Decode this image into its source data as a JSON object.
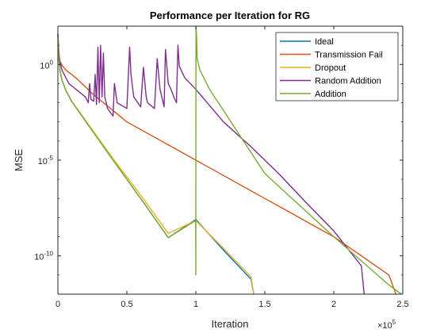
{
  "chart_data": {
    "type": "line",
    "title": "Performance per Iteration for RG",
    "xlabel": "Iteration",
    "ylabel": "MSE",
    "x_exponent_label": "×10",
    "x_exponent_power": "5",
    "x_scale": "linear",
    "y_scale": "log",
    "xlim": [
      0,
      250000
    ],
    "ylim": [
      1e-12,
      100.0
    ],
    "x_ticks": [
      0,
      50000,
      100000,
      150000,
      200000,
      250000
    ],
    "x_tick_labels": [
      "0",
      "0.5",
      "1",
      "1.5",
      "2",
      "2.5"
    ],
    "y_ticks": [
      1e-10,
      1e-05,
      1
    ],
    "y_tick_labels": [
      {
        "base": "10",
        "exp": "-10"
      },
      {
        "base": "10",
        "exp": "-5"
      },
      {
        "base": "10",
        "exp": "0"
      }
    ],
    "legend_position": "top-right",
    "grid": false,
    "series": [
      {
        "name": "Ideal",
        "color": "#0072BD",
        "points": [
          [
            0,
            40
          ],
          [
            500,
            3
          ],
          [
            1500,
            0.5
          ],
          [
            3000,
            0.15
          ],
          [
            6000,
            0.04
          ],
          [
            10000,
            0.012
          ],
          [
            20000,
            0.0011
          ],
          [
            40000,
            1e-05
          ],
          [
            60000,
            1e-07
          ],
          [
            80000,
            9e-10
          ],
          [
            100000,
            8e-09
          ],
          [
            120000,
            2e-10
          ],
          [
            140000,
            6e-12
          ],
          [
            142000,
            1e-12
          ]
        ]
      },
      {
        "name": "Transmission Fail",
        "color": "#D95319",
        "points": [
          [
            0,
            40
          ],
          [
            500,
            5
          ],
          [
            1500,
            1.5
          ],
          [
            3000,
            0.9
          ],
          [
            6000,
            0.5
          ],
          [
            10000,
            0.3
          ],
          [
            15000,
            0.15
          ],
          [
            25000,
            0.03
          ],
          [
            50000,
            0.001
          ],
          [
            100000,
            1e-05
          ],
          [
            150000,
            1e-07
          ],
          [
            200000,
            1e-09
          ],
          [
            220000,
            1e-10
          ],
          [
            240000,
            1e-11
          ],
          [
            245000,
            1e-12
          ]
        ]
      },
      {
        "name": "Dropout",
        "color": "#EDB120",
        "points": [
          [
            0,
            40
          ],
          [
            500,
            3
          ],
          [
            1500,
            0.5
          ],
          [
            3000,
            0.15
          ],
          [
            6000,
            0.04
          ],
          [
            10000,
            0.012
          ],
          [
            20000,
            0.0012
          ],
          [
            40000,
            1.2e-05
          ],
          [
            60000,
            1.5e-07
          ],
          [
            80000,
            1.5e-09
          ],
          [
            100000,
            7e-09
          ],
          [
            120000,
            2.5e-10
          ],
          [
            140000,
            8e-12
          ],
          [
            142000,
            1e-12
          ]
        ]
      },
      {
        "name": "Random Addition",
        "color": "#7E2F8E",
        "points": [
          [
            0,
            40
          ],
          [
            1000,
            2
          ],
          [
            3000,
            0.5
          ],
          [
            8000,
            0.1
          ],
          [
            20000,
            0.02
          ],
          [
            22000,
            0.01
          ],
          [
            23000,
            0.1
          ],
          [
            24000,
            0.015
          ],
          [
            26000,
            0.012
          ],
          [
            27000,
            0.3
          ],
          [
            28000,
            0.008
          ],
          [
            29000,
            8
          ],
          [
            30000,
            0.01
          ],
          [
            31000,
            10
          ],
          [
            32000,
            0.02
          ],
          [
            33000,
            4
          ],
          [
            34000,
            0.02
          ],
          [
            36000,
            0.005
          ],
          [
            40000,
            0.002
          ],
          [
            41000,
            0.1
          ],
          [
            43000,
            0.01
          ],
          [
            50000,
            0.005
          ],
          [
            52000,
            8
          ],
          [
            53000,
            0.3
          ],
          [
            55000,
            0.02
          ],
          [
            58000,
            0.01
          ],
          [
            60000,
            0.006
          ],
          [
            62000,
            0.7
          ],
          [
            64000,
            0.02
          ],
          [
            65000,
            0.01
          ],
          [
            70000,
            0.005
          ],
          [
            72000,
            2
          ],
          [
            74000,
            0.05
          ],
          [
            77000,
            0.006
          ],
          [
            78000,
            6
          ],
          [
            80000,
            0.1
          ],
          [
            82000,
            0.05
          ],
          [
            84000,
            0.02
          ],
          [
            86000,
            0.01
          ],
          [
            87000,
            10
          ],
          [
            88000,
            0.8
          ],
          [
            92000,
            0.2
          ],
          [
            100000,
            0.05
          ],
          [
            120000,
            0.001
          ],
          [
            140000,
            5e-05
          ],
          [
            160000,
            2e-06
          ],
          [
            180000,
            6e-08
          ],
          [
            200000,
            2e-09
          ],
          [
            220000,
            3e-11
          ],
          [
            222000,
            1e-12
          ]
        ]
      },
      {
        "name": "Addition",
        "color": "#77AC30",
        "points": [
          [
            0,
            40
          ],
          [
            500,
            3
          ],
          [
            1500,
            0.5
          ],
          [
            3000,
            0.15
          ],
          [
            6000,
            0.04
          ],
          [
            10000,
            0.012
          ],
          [
            20000,
            0.0011
          ],
          [
            40000,
            1e-05
          ],
          [
            60000,
            1e-07
          ],
          [
            80000,
            9e-10
          ],
          [
            99900,
            7e-09
          ],
          [
            100000,
            1e-11
          ],
          [
            100100,
            100.0
          ],
          [
            100500,
            30
          ],
          [
            101000,
            2
          ],
          [
            103000,
            0.5
          ],
          [
            110000,
            0.05
          ],
          [
            150000,
            2e-06
          ],
          [
            200000,
            1e-09
          ],
          [
            240000,
            3e-12
          ],
          [
            249000,
            1e-12
          ]
        ]
      }
    ]
  }
}
